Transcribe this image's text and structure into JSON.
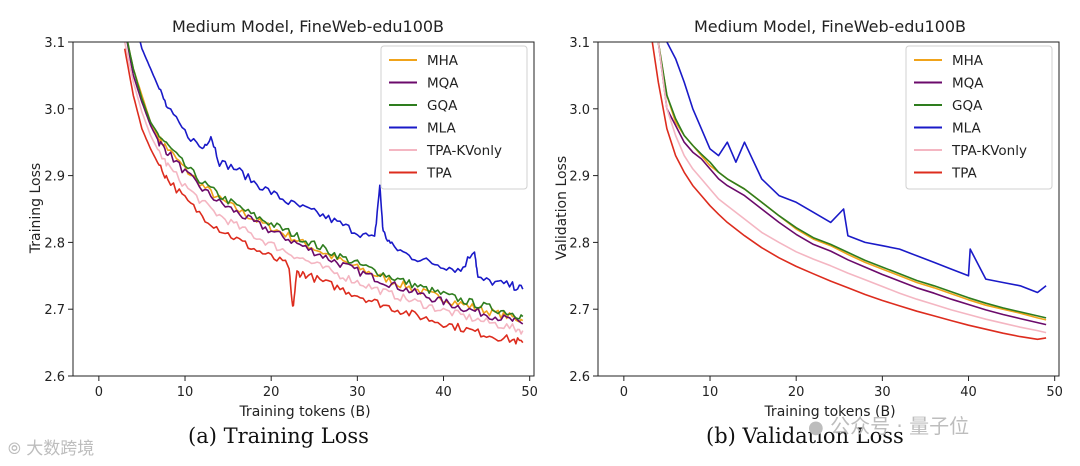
{
  "captions": {
    "left": "(a) Training Loss",
    "right": "(b) Validation Loss"
  },
  "watermarks": {
    "left": "大数跨境",
    "right": "公众号 · 量子位"
  },
  "legend_colors": {
    "MHA": "#f0a31a",
    "MQA": "#6b0a6b",
    "GQA": "#2e7d1e",
    "MLA": "#1a1ac8",
    "TPA-KVonly": "#f4b6c2",
    "TPA": "#dd2c1e"
  },
  "chart_data": [
    {
      "type": "line",
      "title": "Medium Model, FineWeb-edu100B",
      "xlabel": "Training tokens (B)",
      "ylabel": "Training Loss",
      "xlim": [
        -3,
        50.5
      ],
      "ylim": [
        2.6,
        3.1
      ],
      "xticks": [
        0,
        10,
        20,
        30,
        40,
        50
      ],
      "yticks": [
        2.6,
        2.7,
        2.8,
        2.9,
        3.0,
        3.1
      ],
      "legend_position": "upper right",
      "grid": false,
      "series": [
        {
          "name": "MHA",
          "color": "#f0a31a",
          "x": [
            3,
            4,
            5,
            6,
            7,
            8,
            10,
            12,
            14,
            16,
            18,
            20,
            22,
            24,
            26,
            28,
            30,
            32,
            34,
            36,
            38,
            40,
            42,
            44,
            46,
            48,
            49.2
          ],
          "y": [
            3.12,
            3.06,
            3.02,
            2.98,
            2.955,
            2.94,
            2.91,
            2.885,
            2.865,
            2.85,
            2.835,
            2.822,
            2.81,
            2.797,
            2.785,
            2.773,
            2.762,
            2.752,
            2.742,
            2.733,
            2.724,
            2.716,
            2.708,
            2.701,
            2.694,
            2.688,
            2.683
          ]
        },
        {
          "name": "MQA",
          "color": "#6b0a6b",
          "x": [
            3,
            4,
            5,
            6,
            7,
            8,
            10,
            12,
            14,
            16,
            18,
            20,
            22,
            24,
            26,
            28,
            30,
            32,
            34,
            36,
            38,
            40,
            42,
            44,
            46,
            48,
            49.2
          ],
          "y": [
            3.12,
            3.05,
            3.01,
            2.975,
            2.95,
            2.935,
            2.905,
            2.88,
            2.86,
            2.845,
            2.83,
            2.817,
            2.805,
            2.792,
            2.78,
            2.768,
            2.757,
            2.747,
            2.737,
            2.728,
            2.719,
            2.711,
            2.703,
            2.696,
            2.689,
            2.683,
            2.678
          ]
        },
        {
          "name": "GQA",
          "color": "#2e7d1e",
          "x": [
            3,
            4,
            5,
            6,
            7,
            8,
            10,
            12,
            14,
            16,
            18,
            20,
            22,
            24,
            26,
            28,
            30,
            32,
            34,
            36,
            38,
            40,
            42,
            44,
            46,
            48,
            49.2
          ],
          "y": [
            3.12,
            3.06,
            3.015,
            2.98,
            2.96,
            2.945,
            2.915,
            2.89,
            2.87,
            2.855,
            2.84,
            2.828,
            2.816,
            2.803,
            2.791,
            2.779,
            2.768,
            2.758,
            2.748,
            2.739,
            2.73,
            2.722,
            2.714,
            2.707,
            2.7,
            2.694,
            2.689
          ]
        },
        {
          "name": "MLA",
          "color": "#1a1ac8",
          "x": [
            4,
            5,
            6,
            7,
            8,
            10,
            12,
            13,
            14,
            16,
            18,
            20,
            22,
            24,
            26,
            28,
            30,
            32,
            32.6,
            33,
            34,
            36,
            38,
            40,
            42,
            43.6,
            44,
            46,
            48,
            49.2
          ],
          "y": [
            3.14,
            3.09,
            3.06,
            3.03,
            3.0,
            2.965,
            2.94,
            2.96,
            2.92,
            2.91,
            2.89,
            2.875,
            2.86,
            2.85,
            2.84,
            2.828,
            2.815,
            2.805,
            2.885,
            2.815,
            2.795,
            2.78,
            2.772,
            2.765,
            2.758,
            2.79,
            2.745,
            2.74,
            2.735,
            2.73
          ]
        },
        {
          "name": "TPA-KVonly",
          "color": "#f4b6c2",
          "x": [
            3,
            4,
            5,
            6,
            7,
            8,
            10,
            12,
            14,
            16,
            18,
            20,
            22,
            24,
            26,
            28,
            30,
            32,
            34,
            36,
            38,
            40,
            42,
            44,
            46,
            48,
            49.2
          ],
          "y": [
            3.1,
            3.04,
            2.995,
            2.96,
            2.935,
            2.915,
            2.885,
            2.86,
            2.84,
            2.825,
            2.81,
            2.797,
            2.785,
            2.773,
            2.762,
            2.751,
            2.741,
            2.731,
            2.722,
            2.714,
            2.706,
            2.698,
            2.691,
            2.684,
            2.678,
            2.672,
            2.668
          ]
        },
        {
          "name": "TPA",
          "color": "#dd2c1e",
          "x": [
            3,
            4,
            5,
            6,
            7,
            8,
            10,
            12,
            14,
            16,
            18,
            20,
            22,
            22.5,
            23,
            24,
            26,
            28,
            30,
            32,
            34,
            36,
            38,
            40,
            42,
            44,
            46,
            48,
            49.2
          ],
          "y": [
            3.09,
            3.02,
            2.97,
            2.94,
            2.915,
            2.895,
            2.865,
            2.84,
            2.82,
            2.805,
            2.79,
            2.778,
            2.766,
            2.7,
            2.755,
            2.752,
            2.741,
            2.731,
            2.721,
            2.711,
            2.702,
            2.694,
            2.686,
            2.679,
            2.672,
            2.665,
            2.659,
            2.654,
            2.65
          ]
        }
      ]
    },
    {
      "type": "line",
      "title": "Medium Model, FineWeb-edu100B",
      "xlabel": "Training tokens (B)",
      "ylabel": "Validation Loss",
      "xlim": [
        -3,
        50.5
      ],
      "ylim": [
        2.6,
        3.1
      ],
      "xticks": [
        0,
        10,
        20,
        30,
        40,
        50
      ],
      "yticks": [
        2.6,
        2.7,
        2.8,
        2.9,
        3.0,
        3.1
      ],
      "legend_position": "upper right",
      "grid": false,
      "series": [
        {
          "name": "MHA",
          "color": "#f0a31a",
          "x": [
            4,
            5,
            6,
            7,
            8,
            9,
            10,
            11,
            12,
            14,
            16,
            18,
            20,
            22,
            24,
            26,
            28,
            30,
            32,
            34,
            36,
            38,
            40,
            42,
            44,
            46,
            48,
            49
          ],
          "y": [
            3.1,
            3.02,
            2.98,
            2.96,
            2.945,
            2.93,
            2.915,
            2.905,
            2.895,
            2.88,
            2.86,
            2.84,
            2.82,
            2.805,
            2.795,
            2.782,
            2.77,
            2.76,
            2.75,
            2.74,
            2.732,
            2.723,
            2.714,
            2.706,
            2.7,
            2.694,
            2.687,
            2.684
          ]
        },
        {
          "name": "MQA",
          "color": "#6b0a6b",
          "x": [
            4,
            5,
            6,
            7,
            8,
            9,
            10,
            11,
            12,
            14,
            16,
            18,
            20,
            22,
            24,
            26,
            28,
            30,
            32,
            34,
            36,
            38,
            40,
            42,
            44,
            46,
            48,
            49
          ],
          "y": [
            3.1,
            3.0,
            2.975,
            2.95,
            2.935,
            2.925,
            2.91,
            2.895,
            2.885,
            2.87,
            2.85,
            2.83,
            2.812,
            2.797,
            2.787,
            2.774,
            2.763,
            2.752,
            2.742,
            2.732,
            2.724,
            2.715,
            2.707,
            2.699,
            2.692,
            2.686,
            2.68,
            2.677
          ]
        },
        {
          "name": "GQA",
          "color": "#2e7d1e",
          "x": [
            4,
            5,
            6,
            7,
            8,
            9,
            10,
            11,
            12,
            14,
            16,
            18,
            20,
            22,
            24,
            26,
            28,
            30,
            32,
            34,
            36,
            38,
            40,
            42,
            44,
            46,
            48,
            49
          ],
          "y": [
            3.1,
            3.02,
            2.985,
            2.96,
            2.945,
            2.932,
            2.92,
            2.905,
            2.895,
            2.88,
            2.86,
            2.84,
            2.822,
            2.807,
            2.797,
            2.785,
            2.773,
            2.763,
            2.753,
            2.743,
            2.735,
            2.726,
            2.717,
            2.709,
            2.702,
            2.696,
            2.69,
            2.687
          ]
        },
        {
          "name": "MLA",
          "color": "#1a1ac8",
          "x": [
            5,
            6,
            7,
            8,
            9,
            10,
            11,
            12,
            13,
            14,
            16,
            18,
            20,
            22,
            24,
            25.5,
            26,
            28,
            30,
            32,
            34,
            36,
            38,
            40,
            40.2,
            42,
            44,
            46,
            48,
            49
          ],
          "y": [
            3.1,
            3.075,
            3.04,
            3.0,
            2.97,
            2.94,
            2.93,
            2.95,
            2.92,
            2.95,
            2.895,
            2.87,
            2.86,
            2.845,
            2.83,
            2.85,
            2.81,
            2.8,
            2.795,
            2.79,
            2.78,
            2.77,
            2.76,
            2.75,
            2.79,
            2.745,
            2.74,
            2.735,
            2.725,
            2.735
          ]
        },
        {
          "name": "TPA-KVonly",
          "color": "#f4b6c2",
          "x": [
            4,
            5,
            6,
            7,
            8,
            9,
            10,
            11,
            12,
            14,
            16,
            18,
            20,
            22,
            24,
            26,
            28,
            30,
            32,
            34,
            36,
            38,
            40,
            42,
            44,
            46,
            48,
            49
          ],
          "y": [
            3.1,
            3.0,
            2.96,
            2.93,
            2.91,
            2.895,
            2.88,
            2.865,
            2.855,
            2.835,
            2.815,
            2.8,
            2.786,
            2.775,
            2.765,
            2.754,
            2.744,
            2.734,
            2.724,
            2.715,
            2.707,
            2.699,
            2.692,
            2.685,
            2.679,
            2.673,
            2.668,
            2.665
          ]
        },
        {
          "name": "TPA",
          "color": "#dd2c1e",
          "x": [
            3.3,
            4,
            5,
            6,
            7,
            8,
            9,
            10,
            11,
            12,
            14,
            16,
            18,
            20,
            22,
            24,
            26,
            28,
            30,
            32,
            34,
            36,
            38,
            40,
            42,
            44,
            46,
            48,
            49
          ],
          "y": [
            3.1,
            3.04,
            2.97,
            2.93,
            2.905,
            2.885,
            2.87,
            2.855,
            2.842,
            2.83,
            2.81,
            2.792,
            2.777,
            2.764,
            2.753,
            2.742,
            2.732,
            2.722,
            2.713,
            2.705,
            2.697,
            2.69,
            2.683,
            2.676,
            2.67,
            2.664,
            2.659,
            2.655,
            2.657
          ]
        }
      ]
    }
  ]
}
